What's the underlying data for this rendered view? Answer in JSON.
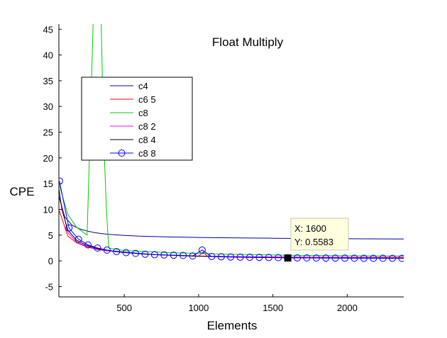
{
  "chart_data": {
    "type": "line",
    "title": "Float Multiply",
    "xlabel": "Elements",
    "ylabel": "CPE",
    "xlim": [
      60,
      2380
    ],
    "ylim": [
      -7,
      46
    ],
    "xticks": [
      500,
      1000,
      1500,
      2000
    ],
    "yticks": [
      -5,
      0,
      5,
      10,
      15,
      20,
      25,
      30,
      35,
      40,
      45
    ],
    "grid": false,
    "legend_position": "upper-left",
    "series": [
      {
        "name": "c4",
        "color": "#0000a0",
        "marker": "none",
        "x": [
          60,
          100,
          150,
          200,
          250,
          300,
          350,
          400,
          500,
          600,
          800,
          1000,
          1200,
          1500,
          1800,
          2000,
          2200,
          2380
        ],
        "y": [
          12.5,
          8.5,
          6.9,
          6.2,
          5.8,
          5.5,
          5.3,
          5.15,
          4.95,
          4.8,
          4.65,
          4.55,
          4.48,
          4.4,
          4.33,
          4.3,
          4.27,
          4.25
        ]
      },
      {
        "name": "c6 5",
        "color": "#ff0000",
        "marker": "none",
        "x": [
          60,
          120,
          180,
          250,
          320,
          400,
          500,
          700,
          1000,
          1030,
          1060,
          1300,
          1600,
          2000,
          2380
        ],
        "y": [
          10,
          4.8,
          3.5,
          2.7,
          2.2,
          1.9,
          1.6,
          1.2,
          0.9,
          1.7,
          0.9,
          0.8,
          0.75,
          0.7,
          0.7
        ]
      },
      {
        "name": "c8",
        "color": "#00cc00",
        "marker": "none",
        "x": [
          60,
          120,
          180,
          250,
          270,
          290,
          310,
          330,
          345,
          360,
          380,
          395,
          500,
          800,
          1200,
          1600,
          2000,
          2380
        ],
        "y": [
          15,
          9,
          6.5,
          5,
          25,
          46,
          48,
          48,
          46,
          25,
          10,
          2.5,
          2,
          1.6,
          1.3,
          1.1,
          1,
          0.95
        ]
      },
      {
        "name": "c8 2",
        "color": "#ff00ff",
        "marker": "none",
        "x": [
          60,
          120,
          180,
          250,
          320,
          400,
          500,
          700,
          1000,
          1300,
          1600,
          2000,
          2380
        ],
        "y": [
          13,
          5.5,
          3.7,
          2.8,
          2.3,
          1.9,
          1.6,
          1.25,
          0.95,
          0.8,
          0.7,
          0.65,
          0.6
        ]
      },
      {
        "name": "c8 4",
        "color": "#000000",
        "marker": "none",
        "x": [
          60,
          80,
          120,
          180,
          250,
          320,
          400,
          500,
          700,
          1000,
          1300,
          1600,
          2000,
          2380
        ],
        "y": [
          14,
          10,
          6,
          4,
          3,
          2.4,
          2,
          1.7,
          1.2,
          0.9,
          0.7,
          0.6,
          0.55,
          0.5
        ]
      },
      {
        "name": "c8 8",
        "color": "#0000ff",
        "marker": "circle",
        "x": [
          64,
          128,
          192,
          256,
          320,
          384,
          448,
          512,
          576,
          640,
          704,
          768,
          832,
          896,
          960,
          1024,
          1088,
          1152,
          1216,
          1280,
          1344,
          1408,
          1472,
          1536,
          1600,
          1664,
          1728,
          1792,
          1856,
          1920,
          1984,
          2048,
          2112,
          2176,
          2240,
          2304,
          2368
        ],
        "y": [
          15.5,
          6.4,
          4.2,
          3.1,
          2.5,
          2.1,
          1.8,
          1.6,
          1.45,
          1.3,
          1.2,
          1.15,
          1.1,
          1.05,
          0.95,
          2.1,
          0.85,
          0.8,
          0.75,
          0.72,
          0.7,
          0.68,
          0.65,
          0.62,
          0.6,
          0.58,
          0.57,
          0.56,
          0.55,
          0.54,
          0.53,
          0.52,
          0.51,
          0.5,
          0.5,
          0.49,
          0.49
        ]
      }
    ],
    "datatip": {
      "x_label": "X: 1600",
      "y_label": "Y: 0.5583",
      "x": 1600,
      "y": 0.5583
    }
  }
}
